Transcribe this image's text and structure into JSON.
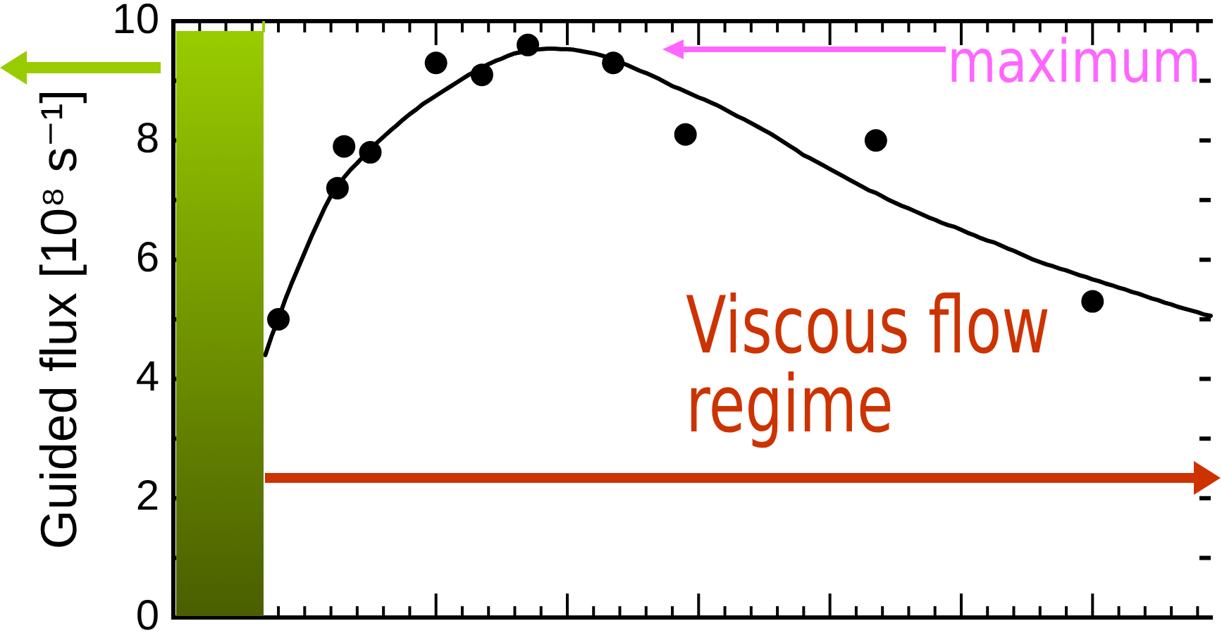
{
  "chart_data": {
    "type": "scatter",
    "ylabel": "Guided flux [10⁸ s⁻¹]",
    "annotations": [
      "maximum",
      "Viscous flow regime"
    ],
    "categories": [
      null,
      null,
      null,
      null,
      null,
      null,
      null,
      null,
      null,
      null,
      null,
      null,
      null,
      null,
      null,
      null,
      null,
      null,
      null,
      null,
      null,
      null,
      null,
      null,
      null,
      null,
      null,
      null,
      null,
      null,
      null,
      null,
      null,
      null,
      null,
      null,
      null,
      null,
      null,
      null,
      null,
      null,
      null,
      null,
      null,
      null,
      null,
      null,
      null,
      null,
      null,
      null,
      null,
      null,
      null,
      null,
      null,
      null,
      null,
      null,
      null,
      null,
      null,
      null,
      null,
      null,
      null,
      null,
      null,
      null,
      null,
      null,
      null,
      null,
      null,
      null,
      null,
      null,
      null,
      null,
      null,
      null,
      null,
      null,
      null,
      null,
      null,
      null,
      null,
      null,
      null,
      null,
      null,
      null,
      null,
      null,
      null,
      null,
      null,
      null,
      null,
      null,
      null,
      null,
      null,
      null,
      null,
      null,
      null,
      null,
      null,
      null,
      null,
      null,
      null,
      null,
      null,
      null,
      null,
      null,
      null,
      null,
      null,
      null,
      null,
      null,
      null,
      null,
      null,
      null,
      null,
      null,
      null,
      null,
      null,
      null,
      null,
      null,
      null,
      null,
      null,
      null,
      null,
      null,
      null,
      null,
      null,
      null,
      null,
      null,
      null,
      null,
      null,
      null,
      null,
      null,
      null,
      null,
      null
    ],
    "series": [
      {
        "type": "scatter",
        "color": "#000000",
        "marker": "circle",
        "values": [
          null,
          null,
          null,
          null,
          null,
          null,
          null,
          null,
          null,
          null,
          null,
          null,
          null,
          null,
          null,
          null,
          5.0,
          null,
          null,
          null,
          null,
          null,
          null,
          null,
          null,
          7.2,
          7.9,
          null,
          null,
          null,
          7.8,
          null,
          null,
          null,
          null,
          null,
          null,
          null,
          null,
          null,
          9.3,
          null,
          null,
          null,
          null,
          null,
          null,
          9.1,
          null,
          null,
          null,
          null,
          null,
          null,
          9.6,
          null,
          null,
          null,
          null,
          null,
          null,
          null,
          null,
          null,
          null,
          null,
          null,
          9.3,
          null,
          null,
          null,
          null,
          null,
          null,
          null,
          null,
          null,
          null,
          8.1,
          null,
          null,
          null,
          null,
          null,
          null,
          null,
          null,
          null,
          null,
          null,
          null,
          null,
          null,
          null,
          null,
          null,
          null,
          null,
          null,
          null,
          null,
          null,
          null,
          null,
          null,
          null,
          null,
          8.0,
          null,
          null,
          null,
          null,
          null,
          null,
          null,
          null,
          null,
          null,
          null,
          null,
          null,
          null,
          null,
          null,
          null,
          null,
          null,
          null,
          null,
          null,
          null,
          null,
          null,
          null,
          null,
          null,
          null,
          null,
          null,
          null,
          5.3,
          null,
          null,
          null,
          null,
          null,
          null,
          null,
          null,
          null,
          null,
          null,
          null,
          null,
          null,
          null,
          null,
          null,
          null
        ]
      },
      {
        "type": "line",
        "color": "#000000",
        "marker": "none",
        "values": [
          null,
          null,
          null,
          null,
          null,
          null,
          null,
          null,
          null,
          null,
          null,
          null,
          null,
          null,
          4.4,
          4.73,
          5.01,
          5.32,
          5.6,
          5.86,
          6.12,
          6.38,
          6.62,
          6.86,
          7.07,
          7.23,
          7.38,
          7.51,
          7.62,
          7.74,
          7.85,
          7.96,
          8.06,
          8.16,
          8.25,
          8.35,
          8.44,
          8.52,
          8.61,
          8.68,
          8.75,
          8.82,
          8.89,
          8.96,
          9.03,
          9.1,
          9.16,
          9.22,
          9.28,
          9.33,
          9.37,
          9.42,
          9.46,
          9.48,
          9.5,
          9.52,
          9.53,
          9.54,
          9.54,
          9.53,
          9.53,
          9.52,
          9.5,
          9.48,
          9.46,
          9.43,
          9.4,
          9.36,
          9.31,
          9.27,
          9.22,
          9.17,
          9.13,
          9.08,
          9.03,
          8.97,
          8.91,
          8.87,
          8.82,
          8.77,
          8.72,
          8.68,
          8.63,
          8.58,
          8.52,
          8.46,
          8.4,
          8.35,
          8.29,
          8.23,
          8.17,
          8.11,
          8.04,
          7.97,
          7.9,
          7.83,
          7.75,
          7.7,
          7.64,
          7.58,
          7.52,
          7.46,
          7.4,
          7.34,
          7.28,
          7.22,
          7.16,
          7.12,
          7.06,
          7.0,
          6.95,
          6.9,
          6.86,
          6.81,
          6.76,
          6.71,
          6.67,
          6.62,
          6.58,
          6.55,
          6.5,
          6.45,
          6.41,
          6.36,
          6.32,
          6.29,
          6.24,
          6.19,
          6.15,
          6.1,
          6.05,
          6.0,
          5.96,
          5.92,
          5.89,
          5.85,
          5.82,
          5.78,
          5.74,
          5.71,
          5.67,
          5.64,
          5.6,
          5.57,
          5.53,
          5.5,
          5.46,
          5.43,
          5.39,
          5.35,
          5.32,
          5.28,
          5.25,
          5.21,
          5.18,
          5.15,
          5.12,
          5.08,
          5.06
        ]
      }
    ],
    "ylim": [
      0,
      10
    ],
    "yticks": [
      0,
      {
        "value": 1,
        "label": null
      },
      2,
      {
        "value": 3,
        "label": null
      },
      4,
      {
        "value": 5,
        "label": null
      },
      6,
      {
        "value": 7,
        "label": null
      },
      8,
      {
        "value": 9,
        "label": null
      },
      10
    ],
    "tick_labels": "y"
  }
}
